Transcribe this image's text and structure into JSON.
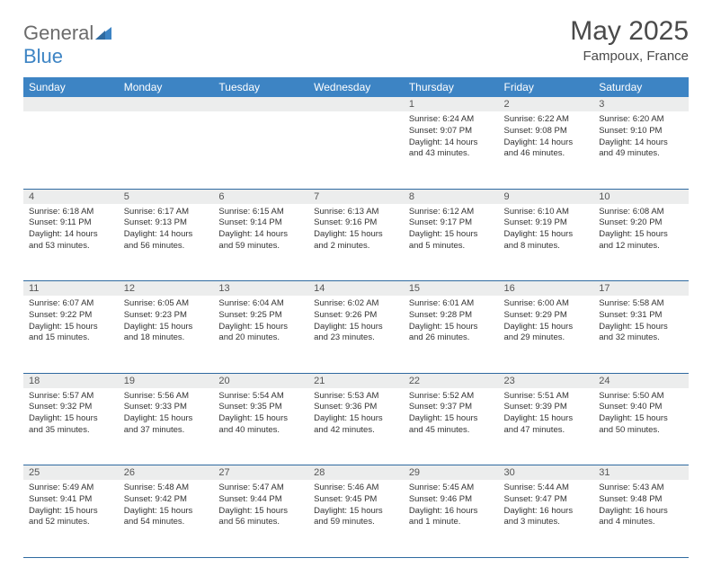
{
  "brand": {
    "part1": "General",
    "part2": "Blue"
  },
  "title": "May 2025",
  "subtitle": "Fampoux, France",
  "colors": {
    "header_bg": "#3d84c4",
    "header_fg": "#ffffff",
    "daynum_bg": "#eceded",
    "row_border": "#2f6aa0",
    "text": "#333333",
    "title_color": "#4a4a4a",
    "logo_gray": "#6b6b6b",
    "logo_blue": "#3d84c4"
  },
  "day_headers": [
    "Sunday",
    "Monday",
    "Tuesday",
    "Wednesday",
    "Thursday",
    "Friday",
    "Saturday"
  ],
  "weeks": [
    {
      "nums": [
        "",
        "",
        "",
        "",
        "1",
        "2",
        "3"
      ],
      "cells": [
        null,
        null,
        null,
        null,
        {
          "sr": "Sunrise: 6:24 AM",
          "ss": "Sunset: 9:07 PM",
          "d1": "Daylight: 14 hours",
          "d2": "and 43 minutes."
        },
        {
          "sr": "Sunrise: 6:22 AM",
          "ss": "Sunset: 9:08 PM",
          "d1": "Daylight: 14 hours",
          "d2": "and 46 minutes."
        },
        {
          "sr": "Sunrise: 6:20 AM",
          "ss": "Sunset: 9:10 PM",
          "d1": "Daylight: 14 hours",
          "d2": "and 49 minutes."
        }
      ]
    },
    {
      "nums": [
        "4",
        "5",
        "6",
        "7",
        "8",
        "9",
        "10"
      ],
      "cells": [
        {
          "sr": "Sunrise: 6:18 AM",
          "ss": "Sunset: 9:11 PM",
          "d1": "Daylight: 14 hours",
          "d2": "and 53 minutes."
        },
        {
          "sr": "Sunrise: 6:17 AM",
          "ss": "Sunset: 9:13 PM",
          "d1": "Daylight: 14 hours",
          "d2": "and 56 minutes."
        },
        {
          "sr": "Sunrise: 6:15 AM",
          "ss": "Sunset: 9:14 PM",
          "d1": "Daylight: 14 hours",
          "d2": "and 59 minutes."
        },
        {
          "sr": "Sunrise: 6:13 AM",
          "ss": "Sunset: 9:16 PM",
          "d1": "Daylight: 15 hours",
          "d2": "and 2 minutes."
        },
        {
          "sr": "Sunrise: 6:12 AM",
          "ss": "Sunset: 9:17 PM",
          "d1": "Daylight: 15 hours",
          "d2": "and 5 minutes."
        },
        {
          "sr": "Sunrise: 6:10 AM",
          "ss": "Sunset: 9:19 PM",
          "d1": "Daylight: 15 hours",
          "d2": "and 8 minutes."
        },
        {
          "sr": "Sunrise: 6:08 AM",
          "ss": "Sunset: 9:20 PM",
          "d1": "Daylight: 15 hours",
          "d2": "and 12 minutes."
        }
      ]
    },
    {
      "nums": [
        "11",
        "12",
        "13",
        "14",
        "15",
        "16",
        "17"
      ],
      "cells": [
        {
          "sr": "Sunrise: 6:07 AM",
          "ss": "Sunset: 9:22 PM",
          "d1": "Daylight: 15 hours",
          "d2": "and 15 minutes."
        },
        {
          "sr": "Sunrise: 6:05 AM",
          "ss": "Sunset: 9:23 PM",
          "d1": "Daylight: 15 hours",
          "d2": "and 18 minutes."
        },
        {
          "sr": "Sunrise: 6:04 AM",
          "ss": "Sunset: 9:25 PM",
          "d1": "Daylight: 15 hours",
          "d2": "and 20 minutes."
        },
        {
          "sr": "Sunrise: 6:02 AM",
          "ss": "Sunset: 9:26 PM",
          "d1": "Daylight: 15 hours",
          "d2": "and 23 minutes."
        },
        {
          "sr": "Sunrise: 6:01 AM",
          "ss": "Sunset: 9:28 PM",
          "d1": "Daylight: 15 hours",
          "d2": "and 26 minutes."
        },
        {
          "sr": "Sunrise: 6:00 AM",
          "ss": "Sunset: 9:29 PM",
          "d1": "Daylight: 15 hours",
          "d2": "and 29 minutes."
        },
        {
          "sr": "Sunrise: 5:58 AM",
          "ss": "Sunset: 9:31 PM",
          "d1": "Daylight: 15 hours",
          "d2": "and 32 minutes."
        }
      ]
    },
    {
      "nums": [
        "18",
        "19",
        "20",
        "21",
        "22",
        "23",
        "24"
      ],
      "cells": [
        {
          "sr": "Sunrise: 5:57 AM",
          "ss": "Sunset: 9:32 PM",
          "d1": "Daylight: 15 hours",
          "d2": "and 35 minutes."
        },
        {
          "sr": "Sunrise: 5:56 AM",
          "ss": "Sunset: 9:33 PM",
          "d1": "Daylight: 15 hours",
          "d2": "and 37 minutes."
        },
        {
          "sr": "Sunrise: 5:54 AM",
          "ss": "Sunset: 9:35 PM",
          "d1": "Daylight: 15 hours",
          "d2": "and 40 minutes."
        },
        {
          "sr": "Sunrise: 5:53 AM",
          "ss": "Sunset: 9:36 PM",
          "d1": "Daylight: 15 hours",
          "d2": "and 42 minutes."
        },
        {
          "sr": "Sunrise: 5:52 AM",
          "ss": "Sunset: 9:37 PM",
          "d1": "Daylight: 15 hours",
          "d2": "and 45 minutes."
        },
        {
          "sr": "Sunrise: 5:51 AM",
          "ss": "Sunset: 9:39 PM",
          "d1": "Daylight: 15 hours",
          "d2": "and 47 minutes."
        },
        {
          "sr": "Sunrise: 5:50 AM",
          "ss": "Sunset: 9:40 PM",
          "d1": "Daylight: 15 hours",
          "d2": "and 50 minutes."
        }
      ]
    },
    {
      "nums": [
        "25",
        "26",
        "27",
        "28",
        "29",
        "30",
        "31"
      ],
      "cells": [
        {
          "sr": "Sunrise: 5:49 AM",
          "ss": "Sunset: 9:41 PM",
          "d1": "Daylight: 15 hours",
          "d2": "and 52 minutes."
        },
        {
          "sr": "Sunrise: 5:48 AM",
          "ss": "Sunset: 9:42 PM",
          "d1": "Daylight: 15 hours",
          "d2": "and 54 minutes."
        },
        {
          "sr": "Sunrise: 5:47 AM",
          "ss": "Sunset: 9:44 PM",
          "d1": "Daylight: 15 hours",
          "d2": "and 56 minutes."
        },
        {
          "sr": "Sunrise: 5:46 AM",
          "ss": "Sunset: 9:45 PM",
          "d1": "Daylight: 15 hours",
          "d2": "and 59 minutes."
        },
        {
          "sr": "Sunrise: 5:45 AM",
          "ss": "Sunset: 9:46 PM",
          "d1": "Daylight: 16 hours",
          "d2": "and 1 minute."
        },
        {
          "sr": "Sunrise: 5:44 AM",
          "ss": "Sunset: 9:47 PM",
          "d1": "Daylight: 16 hours",
          "d2": "and 3 minutes."
        },
        {
          "sr": "Sunrise: 5:43 AM",
          "ss": "Sunset: 9:48 PM",
          "d1": "Daylight: 16 hours",
          "d2": "and 4 minutes."
        }
      ]
    }
  ]
}
